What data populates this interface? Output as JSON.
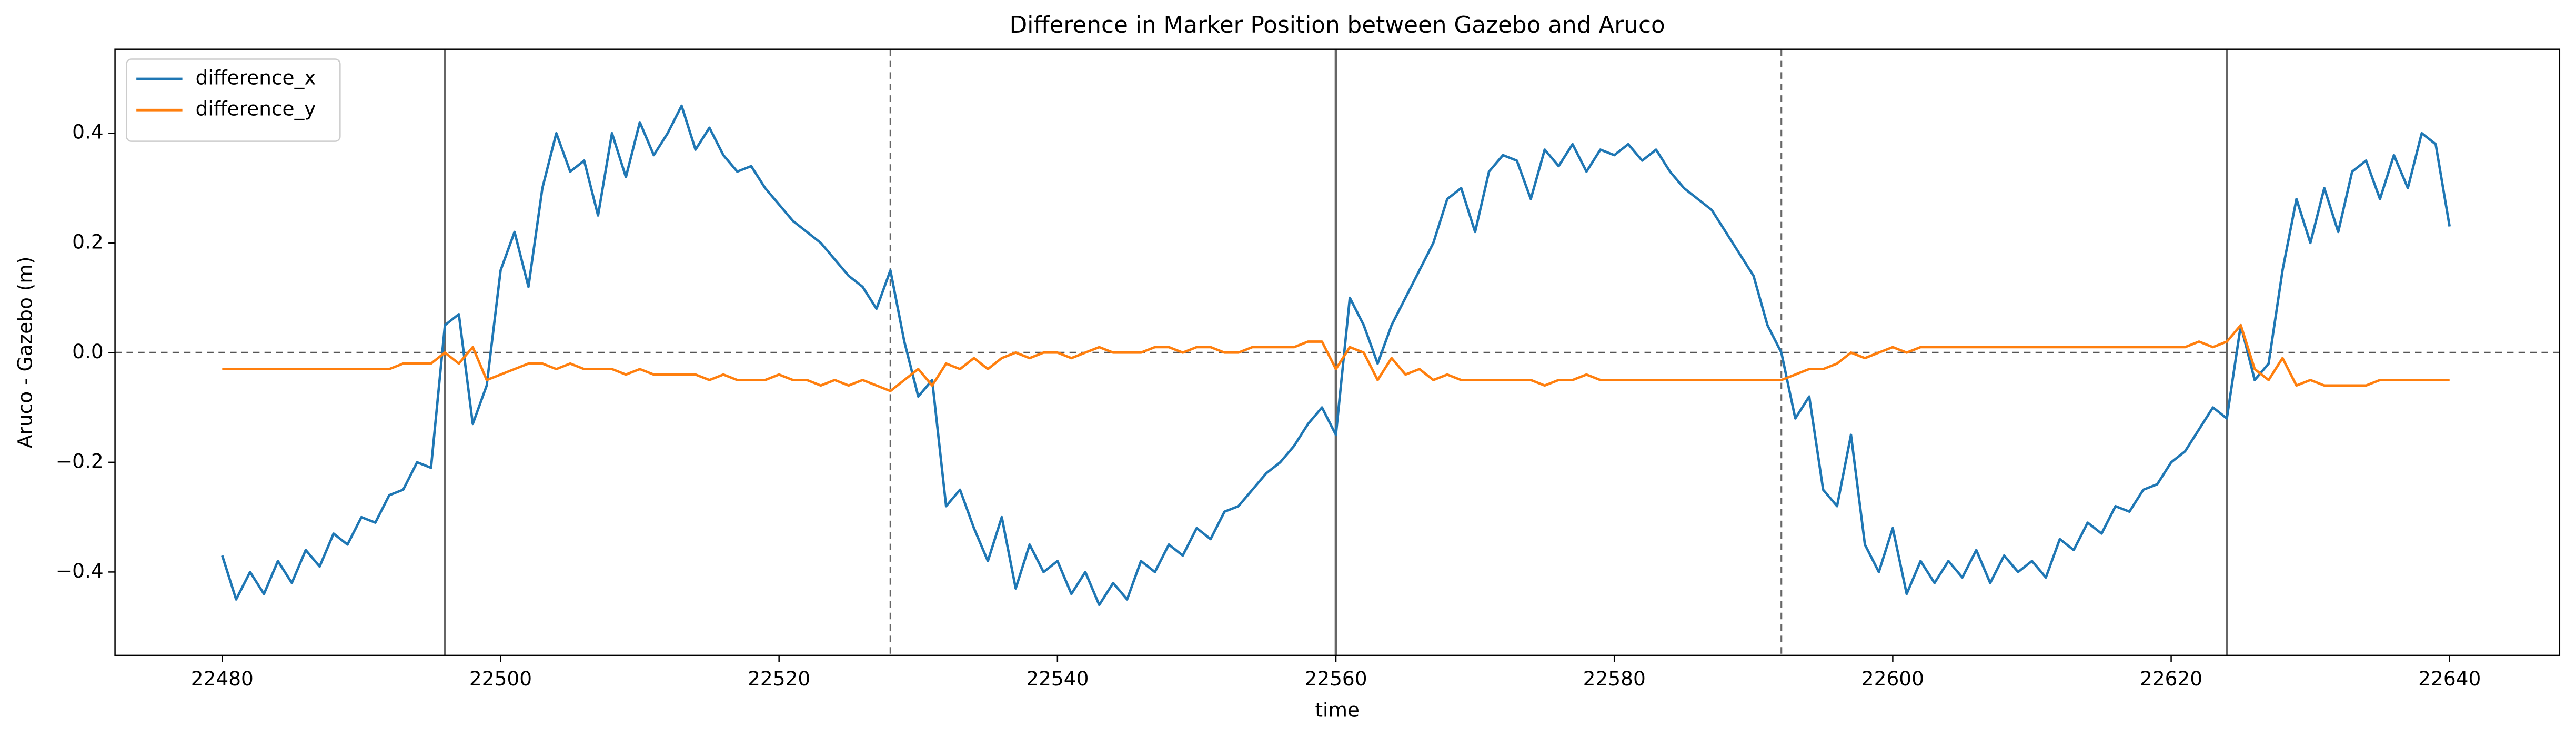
{
  "chart_data": {
    "type": "line",
    "title": "Difference in Marker Position between Gazebo and Aruco",
    "x_label": "time",
    "y_label": "Aruco - Gazebo (m)",
    "x": [
      22480,
      22481,
      22482,
      22483,
      22484,
      22485,
      22486,
      22487,
      22488,
      22489,
      22490,
      22491,
      22492,
      22493,
      22494,
      22495,
      22496,
      22497,
      22498,
      22499,
      22500,
      22501,
      22502,
      22503,
      22504,
      22505,
      22506,
      22507,
      22508,
      22509,
      22510,
      22511,
      22512,
      22513,
      22514,
      22515,
      22516,
      22517,
      22518,
      22519,
      22520,
      22521,
      22522,
      22523,
      22524,
      22525,
      22526,
      22527,
      22528,
      22529,
      22530,
      22531,
      22532,
      22533,
      22534,
      22535,
      22536,
      22537,
      22538,
      22539,
      22540,
      22541,
      22542,
      22543,
      22544,
      22545,
      22546,
      22547,
      22548,
      22549,
      22550,
      22551,
      22552,
      22553,
      22554,
      22555,
      22556,
      22557,
      22558,
      22559,
      22560,
      22561,
      22562,
      22563,
      22564,
      22565,
      22566,
      22567,
      22568,
      22569,
      22570,
      22571,
      22572,
      22573,
      22574,
      22575,
      22576,
      22577,
      22578,
      22579,
      22580,
      22581,
      22582,
      22583,
      22584,
      22585,
      22586,
      22587,
      22588,
      22589,
      22590,
      22591,
      22592,
      22593,
      22594,
      22595,
      22596,
      22597,
      22598,
      22599,
      22600,
      22601,
      22602,
      22603,
      22604,
      22605,
      22606,
      22607,
      22608,
      22609,
      22610,
      22611,
      22612,
      22613,
      22614,
      22615,
      22616,
      22617,
      22618,
      22619,
      22620,
      22621,
      22622,
      22623,
      22624,
      22625,
      22626,
      22627,
      22628,
      22629,
      22630,
      22631,
      22632,
      22633,
      22634,
      22635,
      22636,
      22637,
      22638,
      22639,
      22640
    ],
    "series": [
      {
        "name": "difference_x",
        "color": "#1f77b4",
        "values": [
          -0.37,
          -0.45,
          -0.4,
          -0.44,
          -0.38,
          -0.42,
          -0.36,
          -0.39,
          -0.33,
          -0.35,
          -0.3,
          -0.31,
          -0.26,
          -0.25,
          -0.2,
          -0.21,
          0.05,
          0.07,
          -0.13,
          -0.06,
          0.15,
          0.22,
          0.12,
          0.3,
          0.4,
          0.33,
          0.35,
          0.25,
          0.4,
          0.32,
          0.42,
          0.36,
          0.4,
          0.45,
          0.37,
          0.41,
          0.36,
          0.33,
          0.34,
          0.3,
          0.27,
          0.24,
          0.22,
          0.2,
          0.17,
          0.14,
          0.12,
          0.08,
          0.15,
          0.02,
          -0.08,
          -0.05,
          -0.28,
          -0.25,
          -0.32,
          -0.38,
          -0.3,
          -0.43,
          -0.35,
          -0.4,
          -0.38,
          -0.44,
          -0.4,
          -0.46,
          -0.42,
          -0.45,
          -0.38,
          -0.4,
          -0.35,
          -0.37,
          -0.32,
          -0.34,
          -0.29,
          -0.28,
          -0.25,
          -0.22,
          -0.2,
          -0.17,
          -0.13,
          -0.1,
          -0.15,
          0.1,
          0.05,
          -0.02,
          0.05,
          0.1,
          0.15,
          0.2,
          0.28,
          0.3,
          0.22,
          0.33,
          0.36,
          0.35,
          0.28,
          0.37,
          0.34,
          0.38,
          0.33,
          0.37,
          0.36,
          0.38,
          0.35,
          0.37,
          0.33,
          0.3,
          0.28,
          0.26,
          0.22,
          0.18,
          0.14,
          0.05,
          0.0,
          -0.12,
          -0.08,
          -0.25,
          -0.28,
          -0.15,
          -0.35,
          -0.4,
          -0.32,
          -0.44,
          -0.38,
          -0.42,
          -0.38,
          -0.41,
          -0.36,
          -0.42,
          -0.37,
          -0.4,
          -0.38,
          -0.41,
          -0.34,
          -0.36,
          -0.31,
          -0.33,
          -0.28,
          -0.29,
          -0.25,
          -0.24,
          -0.2,
          -0.18,
          -0.14,
          -0.1,
          -0.12,
          0.05,
          -0.05,
          -0.02,
          0.15,
          0.28,
          0.2,
          0.3,
          0.22,
          0.33,
          0.35,
          0.28,
          0.36,
          0.3,
          0.4,
          0.38,
          0.23
        ]
      },
      {
        "name": "difference_y",
        "color": "#ff7f0e",
        "values": [
          -0.03,
          -0.03,
          -0.03,
          -0.03,
          -0.03,
          -0.03,
          -0.03,
          -0.03,
          -0.03,
          -0.03,
          -0.03,
          -0.03,
          -0.03,
          -0.02,
          -0.02,
          -0.02,
          0.0,
          -0.02,
          0.01,
          -0.05,
          -0.04,
          -0.03,
          -0.02,
          -0.02,
          -0.03,
          -0.02,
          -0.03,
          -0.03,
          -0.03,
          -0.04,
          -0.03,
          -0.04,
          -0.04,
          -0.04,
          -0.04,
          -0.05,
          -0.04,
          -0.05,
          -0.05,
          -0.05,
          -0.04,
          -0.05,
          -0.05,
          -0.06,
          -0.05,
          -0.06,
          -0.05,
          -0.06,
          -0.07,
          -0.05,
          -0.03,
          -0.06,
          -0.02,
          -0.03,
          -0.01,
          -0.03,
          -0.01,
          0.0,
          -0.01,
          0.0,
          0.0,
          -0.01,
          0.0,
          0.01,
          0.0,
          0.0,
          0.0,
          0.01,
          0.01,
          0.0,
          0.01,
          0.01,
          0.0,
          0.0,
          0.01,
          0.01,
          0.01,
          0.01,
          0.02,
          0.02,
          -0.03,
          0.01,
          0.0,
          -0.05,
          -0.01,
          -0.04,
          -0.03,
          -0.05,
          -0.04,
          -0.05,
          -0.05,
          -0.05,
          -0.05,
          -0.05,
          -0.05,
          -0.06,
          -0.05,
          -0.05,
          -0.04,
          -0.05,
          -0.05,
          -0.05,
          -0.05,
          -0.05,
          -0.05,
          -0.05,
          -0.05,
          -0.05,
          -0.05,
          -0.05,
          -0.05,
          -0.05,
          -0.05,
          -0.04,
          -0.03,
          -0.03,
          -0.02,
          0.0,
          -0.01,
          0.0,
          0.01,
          0.0,
          0.01,
          0.01,
          0.01,
          0.01,
          0.01,
          0.01,
          0.01,
          0.01,
          0.01,
          0.01,
          0.01,
          0.01,
          0.01,
          0.01,
          0.01,
          0.01,
          0.01,
          0.01,
          0.01,
          0.01,
          0.02,
          0.01,
          0.02,
          0.05,
          -0.03,
          -0.05,
          -0.01,
          -0.06,
          -0.05,
          -0.06,
          -0.06,
          -0.06,
          -0.06,
          -0.05,
          -0.05,
          -0.05,
          -0.05,
          -0.05,
          -0.05
        ]
      }
    ],
    "xlim": [
      22472.3,
      22647.9
    ],
    "ylim": [
      -0.552,
      0.553
    ],
    "xticks": [
      22480,
      22500,
      22520,
      22540,
      22560,
      22580,
      22600,
      22620,
      22640
    ],
    "yticks": [
      {
        "value": -0.4,
        "label": "−0.4"
      },
      {
        "value": -0.2,
        "label": "−0.2"
      },
      {
        "value": 0,
        "label": "0.0"
      },
      {
        "value": 0.2,
        "label": "0.2"
      },
      {
        "value": 0.4,
        "label": "0.4"
      }
    ],
    "solid_vlines": [
      22496,
      22560,
      22624
    ],
    "dashed_vlines": [
      22528,
      22592
    ],
    "hline": 0,
    "legend": "upper left"
  }
}
